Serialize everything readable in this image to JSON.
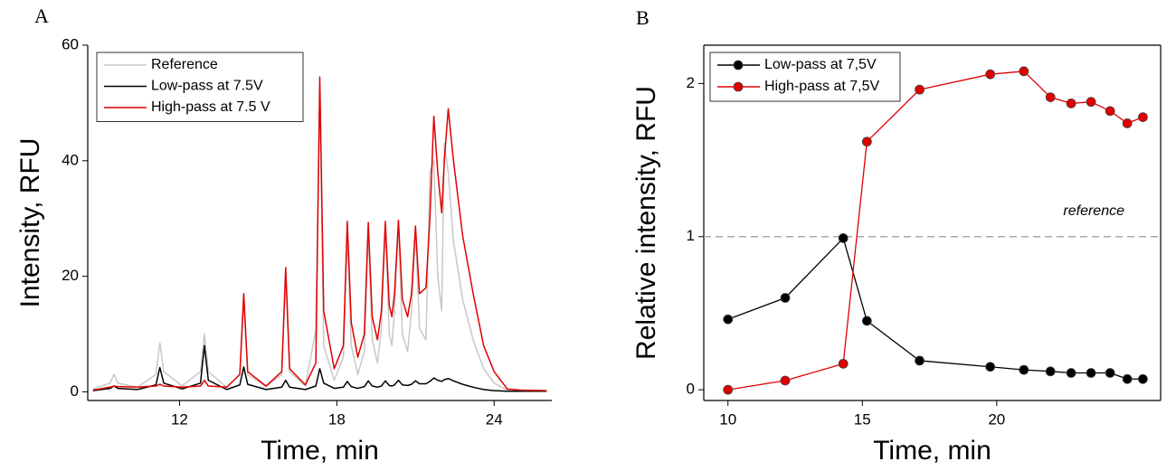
{
  "chart_data": [
    {
      "type": "line",
      "label": "A",
      "xlabel": "Time, min",
      "ylabel": "Intensity, RFU",
      "x": [
        8.7,
        9.35,
        9.5,
        9.65,
        10.4,
        11.1,
        11.25,
        11.4,
        12.1,
        12.8,
        12.95,
        13.1,
        13.8,
        14.3,
        14.45,
        14.6,
        15.3,
        15.9,
        16.05,
        16.2,
        16.8,
        17.2,
        17.35,
        17.5,
        17.9,
        18.25,
        18.4,
        18.55,
        18.8,
        19.05,
        19.2,
        19.35,
        19.55,
        19.7,
        19.85,
        20.0,
        20.1,
        20.2,
        20.35,
        20.5,
        20.7,
        20.85,
        21.0,
        21.15,
        21.4,
        21.55,
        21.7,
        21.85,
        22.0,
        22.1,
        22.25,
        22.45,
        22.8,
        23.2,
        23.6,
        24.0,
        24.5,
        25.0,
        26.0
      ],
      "series": [
        {
          "name": "Reference",
          "color": "#c8c8c8",
          "values": [
            0.5,
            1.5,
            3.0,
            1.5,
            0.8,
            3.0,
            8.5,
            3.5,
            1.0,
            3.5,
            10.0,
            3.5,
            0.8,
            3.0,
            15.5,
            3.0,
            0.9,
            3.0,
            20.0,
            3.5,
            1.0,
            10.7,
            52.0,
            8.0,
            2.0,
            6.0,
            27.0,
            8.0,
            3.0,
            7.0,
            28.0,
            9.0,
            5.0,
            11.0,
            28.5,
            10.0,
            8.0,
            14.0,
            29.0,
            10.0,
            7.0,
            14.0,
            28.0,
            11.0,
            9.0,
            38.0,
            40.0,
            20.0,
            14.0,
            43.0,
            38.0,
            26.0,
            16.0,
            9.0,
            4.0,
            1.5,
            0.3,
            0.2,
            0.2
          ]
        },
        {
          "name": "Low-pass at 7.5V",
          "color": "#000000",
          "values": [
            0.2,
            0.6,
            1.0,
            0.6,
            0.4,
            1.2,
            4.2,
            1.5,
            0.5,
            1.5,
            8.0,
            2.0,
            0.4,
            1.2,
            4.3,
            1.3,
            0.4,
            0.8,
            2.0,
            0.8,
            0.4,
            1.0,
            4.0,
            1.5,
            0.6,
            0.8,
            1.8,
            0.9,
            0.6,
            0.9,
            1.9,
            1.0,
            0.8,
            1.0,
            1.9,
            1.1,
            1.0,
            1.2,
            2.0,
            1.2,
            1.1,
            1.3,
            1.9,
            1.4,
            1.4,
            1.8,
            2.4,
            2.0,
            1.8,
            2.1,
            2.3,
            1.9,
            1.3,
            0.8,
            0.4,
            0.2,
            0.1,
            0.1,
            0.1
          ]
        },
        {
          "name": "High-pass at 7.5 V",
          "color": "#e00000",
          "values": [
            0.3,
            0.8,
            1.0,
            0.9,
            0.8,
            1.0,
            1.3,
            1.0,
            0.8,
            1.0,
            2.0,
            1.0,
            0.8,
            3.0,
            17.0,
            3.5,
            1.0,
            3.5,
            21.5,
            4.0,
            1.2,
            5.0,
            54.5,
            14.0,
            4.0,
            8.0,
            29.5,
            12.0,
            6.0,
            10.0,
            29.3,
            13.0,
            9.0,
            14.0,
            29.5,
            15.0,
            13.0,
            17.0,
            29.7,
            16.0,
            13.0,
            17.0,
            28.7,
            17.0,
            18.0,
            30.0,
            47.7,
            38.0,
            31.0,
            40.0,
            49.0,
            40.0,
            27.0,
            17.0,
            8.0,
            3.5,
            0.5,
            0.3,
            0.2
          ]
        }
      ],
      "xlim": [
        8.5,
        26.2
      ],
      "ylim": [
        -1.5,
        60
      ],
      "xticks": [
        12,
        18,
        24
      ],
      "yticks": [
        0,
        20,
        40,
        60
      ],
      "legend": "upper left",
      "markers": false
    },
    {
      "type": "line",
      "label": "B",
      "xlabel": "Time, min",
      "ylabel": "Relative intensity, RFU",
      "x": [
        10.0,
        12.13,
        14.29,
        15.17,
        17.13,
        19.76,
        21.01,
        22.0,
        22.77,
        23.51,
        24.22,
        24.86,
        25.44
      ],
      "series": [
        {
          "name": "Low-pass at 7,5V",
          "color": "#000000",
          "values": [
            0.46,
            0.6,
            0.99,
            0.45,
            0.19,
            0.15,
            0.13,
            0.12,
            0.11,
            0.11,
            0.11,
            0.07,
            0.07
          ]
        },
        {
          "name": "High-pass at 7,5V",
          "color": "#e00000",
          "values": [
            0.0,
            0.06,
            0.17,
            1.62,
            1.96,
            2.06,
            2.08,
            1.91,
            1.87,
            1.88,
            1.82,
            1.74,
            1.78
          ]
        }
      ],
      "xlim": [
        9.1,
        26.1
      ],
      "ylim": [
        -0.07,
        2.25
      ],
      "xticks": [
        10,
        15,
        20
      ],
      "yticks": [
        0,
        1,
        2
      ],
      "legend": "upper left",
      "markers": true,
      "reference_line": {
        "value": 1,
        "label": "reference",
        "color": "#aaaaaa"
      }
    }
  ]
}
